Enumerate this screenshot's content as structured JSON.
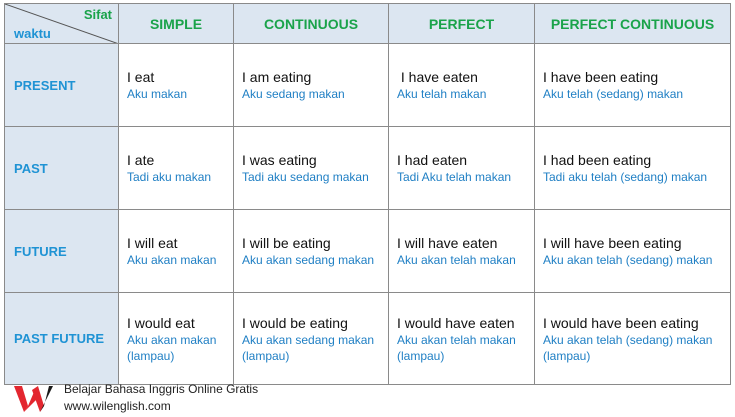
{
  "corner": {
    "top_right": "Sifat",
    "bottom_left": "waktu"
  },
  "columns": [
    "SIMPLE",
    "CONTINUOUS",
    "PERFECT",
    "PERFECT CONTINUOUS"
  ],
  "rows": [
    {
      "label": "PRESENT",
      "cells": [
        {
          "en": "I eat",
          "id": "Aku makan"
        },
        {
          "en": "I am eating",
          "id": "Aku sedang makan"
        },
        {
          "en": " I have eaten",
          "id": "Aku telah makan"
        },
        {
          "en": "I have been eating",
          "id": "Aku telah (sedang) makan"
        }
      ]
    },
    {
      "label": "PAST",
      "cells": [
        {
          "en": "I ate",
          "id": "Tadi aku makan"
        },
        {
          "en": "I was eating",
          "id": "Tadi aku sedang makan"
        },
        {
          "en": "I had eaten",
          "id": "Tadi Aku telah makan"
        },
        {
          "en": "I had been eating",
          "id": "Tadi aku telah (sedang) makan"
        }
      ]
    },
    {
      "label": "FUTURE",
      "cells": [
        {
          "en": "I will eat",
          "id": "Aku akan makan"
        },
        {
          "en": "I will be eating",
          "id": "Aku akan sedang makan"
        },
        {
          "en": "I will have eaten",
          "id": "Aku akan telah makan"
        },
        {
          "en": "I will have been eating",
          "id": "Aku akan telah (sedang) makan"
        }
      ]
    },
    {
      "label": "PAST FUTURE",
      "cells": [
        {
          "en": "I would eat",
          "id": "Aku akan makan",
          "id2": "(lampau)"
        },
        {
          "en": "I would be eating",
          "id": "Aku akan sedang makan",
          "id2": "(lampau)"
        },
        {
          "en": "I would have eaten",
          "id": "Aku akan telah makan",
          "id2": "(lampau)"
        },
        {
          "en": "I would have been eating",
          "id": "Aku akan telah (sedang) makan",
          "id2": "(lampau)"
        }
      ]
    }
  ],
  "footer": {
    "tagline": "Belajar Bahasa Inggris Online Gratis",
    "url": "www.wilenglish.com",
    "logo_colors": {
      "primary": "#e3262f",
      "secondary": "#1a1a1a"
    }
  },
  "colors": {
    "header_bg": "#dce6f1",
    "column_header": "#1aa34a",
    "row_header": "#1f93d4",
    "translation": "#1f7fc4"
  }
}
